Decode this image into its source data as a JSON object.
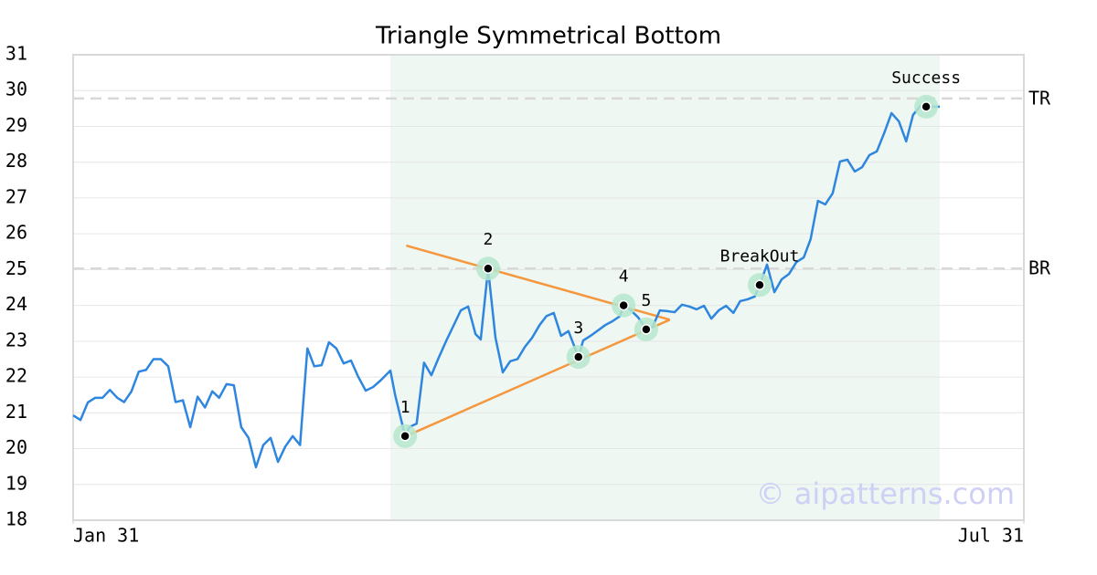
{
  "chart_data": {
    "type": "line",
    "title": "Triangle Symmetrical Bottom",
    "xlim": [
      0,
      181
    ],
    "xticks": [
      {
        "value": 0,
        "label": "Jan 31"
      },
      {
        "value": 181,
        "label": "Jul 31"
      }
    ],
    "ylim": [
      18,
      31
    ],
    "yticks": [
      18,
      19,
      20,
      21,
      22,
      23,
      24,
      25,
      26,
      27,
      28,
      29,
      30,
      31
    ],
    "grid": true,
    "color": "#2e86de",
    "x": [
      0,
      1.4,
      2.8,
      4.2,
      5.6,
      7.0,
      8.4,
      9.7,
      11.1,
      12.5,
      13.9,
      15.3,
      16.7,
      18.1,
      19.5,
      20.9,
      22.3,
      23.7,
      25.1,
      26.5,
      27.8,
      29.2,
      30.6,
      32.0,
      33.4,
      34.8,
      36.2,
      37.6,
      39.0,
      40.4,
      41.8,
      43.2,
      44.6,
      45.9,
      47.3,
      48.7,
      50.1,
      51.5,
      52.9,
      54.3,
      55.7,
      57.1,
      58.5,
      60.4,
      61.3,
      63.2,
      64.0,
      65.4,
      66.8,
      68.2,
      69.6,
      71.0,
      72.4,
      73.8,
      75.2,
      76.6,
      77.6,
      79.0,
      80.4,
      81.8,
      83.2,
      84.6,
      86.0,
      87.4,
      88.8,
      90.1,
      91.5,
      92.9,
      94.3,
      96.2,
      97.1,
      98.5,
      99.9,
      101.3,
      102.7,
      104.1,
      104.8,
      106.2,
      107.6,
      109.1,
      110.3,
      111.7,
      113.1,
      114.5,
      115.9,
      117.3,
      118.7,
      120.1,
      121.5,
      122.9,
      124.3,
      125.7,
      127.0,
      128.4,
      129.8,
      130.7,
      132.1,
      133.5,
      134.9,
      136.3,
      137.7,
      139.1,
      140.4,
      141.8,
      143.2,
      144.6,
      146.0,
      147.4,
      148.8,
      150.2,
      151.6,
      153.0,
      154.4,
      155.8,
      157.2,
      158.6,
      159.9,
      161.3,
      162.4,
      163.6,
      165.0
    ],
    "values": [
      20.93,
      20.8,
      21.29,
      21.42,
      21.42,
      21.64,
      21.42,
      21.3,
      21.6,
      22.15,
      22.2,
      22.5,
      22.5,
      22.3,
      21.3,
      21.35,
      20.6,
      21.45,
      21.15,
      21.6,
      21.42,
      21.8,
      21.77,
      20.6,
      20.3,
      19.48,
      20.1,
      20.3,
      19.63,
      20.06,
      20.35,
      20.1,
      22.8,
      22.3,
      22.33,
      22.97,
      22.8,
      22.38,
      22.46,
      22.0,
      21.62,
      21.72,
      21.9,
      22.18,
      21.5,
      20.35,
      20.6,
      20.7,
      22.4,
      22.05,
      22.54,
      23.0,
      23.43,
      23.86,
      23.97,
      23.2,
      23.05,
      25.03,
      23.1,
      22.13,
      22.44,
      22.5,
      22.84,
      23.1,
      23.45,
      23.7,
      23.79,
      23.15,
      23.28,
      22.56,
      23.02,
      23.15,
      23.3,
      23.45,
      23.56,
      23.7,
      24.0,
      23.86,
      23.66,
      23.33,
      23.4,
      23.86,
      23.84,
      23.81,
      24.02,
      23.97,
      23.89,
      23.99,
      23.63,
      23.86,
      23.99,
      23.79,
      24.12,
      24.17,
      24.25,
      24.57,
      25.14,
      24.37,
      24.73,
      24.88,
      25.21,
      25.34,
      25.85,
      26.92,
      26.82,
      27.13,
      28.02,
      28.07,
      27.74,
      27.86,
      28.2,
      28.3,
      28.81,
      29.37,
      29.14,
      28.58,
      29.32,
      29.57,
      29.55,
      29.55,
      29.55
    ],
    "shade": {
      "xlim": [
        60.4,
        165.0
      ],
      "color": "#eef7f2"
    },
    "levels": [
      {
        "label": "TR",
        "value": 29.78
      },
      {
        "label": "BR",
        "value": 25.03
      }
    ],
    "trend_lines": [
      {
        "x": [
          63.4,
          113.6
        ],
        "y": [
          25.67,
          23.6
        ],
        "color": "#f4973e"
      },
      {
        "x": [
          63.4,
          113.6
        ],
        "y": [
          20.35,
          23.6
        ],
        "color": "#f4973e"
      }
    ],
    "points": [
      {
        "label": "1",
        "x": 63.2,
        "y": 20.35
      },
      {
        "label": "2",
        "x": 79.0,
        "y": 25.03
      },
      {
        "label": "3",
        "x": 96.2,
        "y": 22.56
      },
      {
        "label": "4",
        "x": 104.8,
        "y": 24.0
      },
      {
        "label": "5",
        "x": 109.1,
        "y": 23.33
      },
      {
        "label": "BreakOut",
        "x": 130.7,
        "y": 24.57
      },
      {
        "label": "Success",
        "x": 162.4,
        "y": 29.55
      }
    ],
    "watermark": "© aipatterns.com"
  }
}
